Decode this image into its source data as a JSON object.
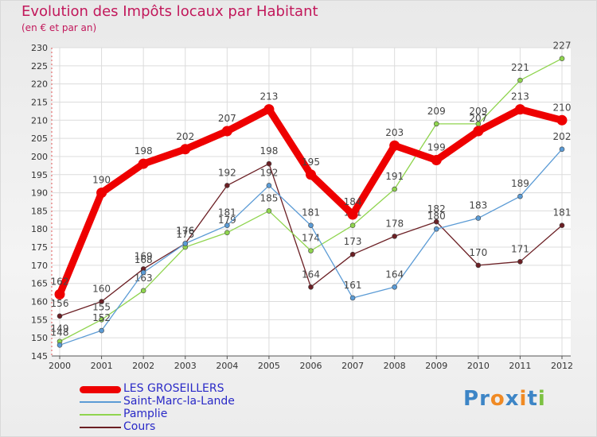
{
  "header": {
    "title": "Evolution des Impôts locaux par Habitant",
    "subtitle": "(en € et par an)"
  },
  "logo": {
    "text": "Proxiti",
    "letters": [
      "P",
      "r",
      "o",
      "x",
      "i",
      "t",
      "i"
    ],
    "colors": [
      "#3d85c6",
      "#3d85c6",
      "#f08a24",
      "#3d85c6",
      "#f08a24",
      "#3d85c6",
      "#7cc142"
    ]
  },
  "chart_data": {
    "type": "line",
    "title": "Evolution des Impôts locaux par Habitant",
    "subtitle": "(en € et par an)",
    "xlabel": "",
    "ylabel": "",
    "categories": [
      "2000",
      "2001",
      "2002",
      "2003",
      "2004",
      "2005",
      "2006",
      "2007",
      "2008",
      "2009",
      "2010",
      "2011",
      "2012"
    ],
    "ylim": [
      145,
      230
    ],
    "yticks": [
      145,
      150,
      155,
      160,
      165,
      170,
      175,
      180,
      185,
      190,
      195,
      200,
      205,
      210,
      215,
      220,
      225,
      230
    ],
    "grid": true,
    "legend": "bottom-left",
    "series": [
      {
        "name": "LES GROSEILLERS",
        "color": "#ee0000",
        "values": [
          162,
          190,
          198,
          202,
          207,
          213,
          195,
          184,
          203,
          199,
          207,
          213,
          210
        ],
        "labels": [
          "162",
          "190",
          "198",
          "202",
          "207",
          "213",
          "195",
          "184",
          "203",
          "199",
          "207",
          "213",
          "210"
        ]
      },
      {
        "name": "Saint-Marc-la-Lande",
        "color": "#5b9bd5",
        "values": [
          148,
          152,
          168,
          176,
          181,
          192,
          181,
          161,
          164,
          180,
          183,
          189,
          202
        ],
        "labels": [
          "148",
          "152",
          "168",
          "176",
          "181",
          "192",
          "181",
          "161",
          "164",
          "180",
          "183",
          "189",
          "202"
        ]
      },
      {
        "name": "Pamplie",
        "color": "#8fd44e",
        "values": [
          149,
          155,
          163,
          175,
          179,
          185,
          174,
          181,
          191,
          209,
          209,
          221,
          227
        ],
        "labels": [
          "149",
          "155",
          "163",
          "175",
          "179",
          "185",
          "174",
          "181",
          "191",
          "209",
          "209",
          "221",
          "227"
        ]
      },
      {
        "name": "Cours",
        "color": "#6b1f24",
        "values": [
          156,
          160,
          169,
          176,
          192,
          198,
          164,
          173,
          178,
          182,
          170,
          171,
          181
        ],
        "labels": [
          "156",
          "160",
          "169",
          "176",
          "192",
          "198",
          "164",
          "173",
          "178",
          "182",
          "170",
          "171",
          "181"
        ]
      }
    ]
  }
}
